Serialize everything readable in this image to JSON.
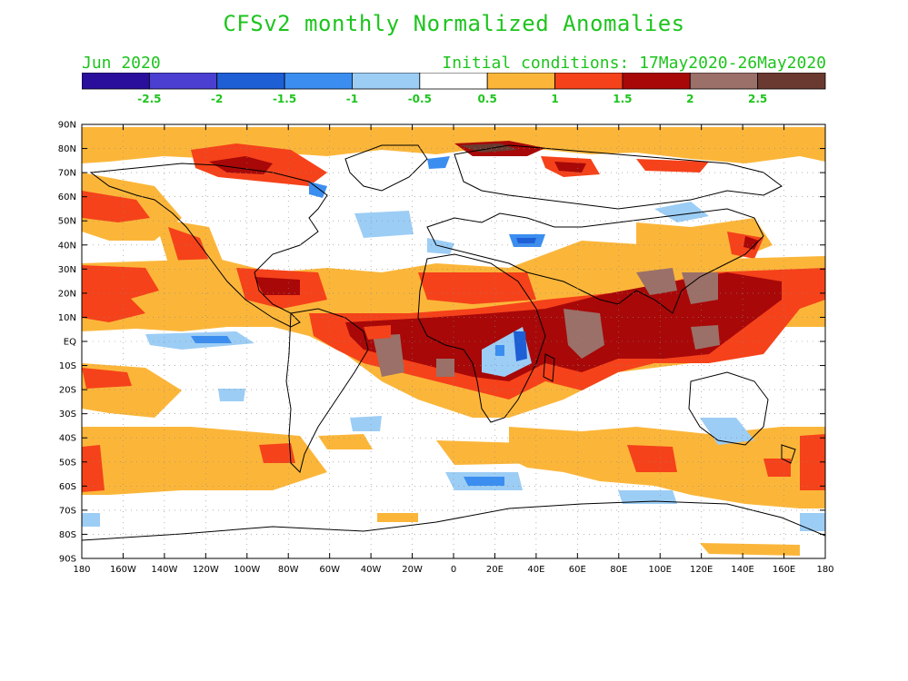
{
  "title": "CFSv2 monthly Normalized Anomalies",
  "month": "Jun 2020",
  "initial_conditions": "Initial conditions: 17May2020-26May2020",
  "legend": {
    "colors": [
      "#2a0f9c",
      "#4a3fd0",
      "#1e5fd6",
      "#3b8ef0",
      "#9ccdf5",
      "#ffffff",
      "#fbb63a",
      "#f5421a",
      "#a80808",
      "#9a7068",
      "#6a3a30"
    ],
    "labels": [
      "-2.5",
      "-2",
      "-1.5",
      "-1",
      "-0.5",
      "0.5",
      "1",
      "1.5",
      "2",
      "2.5"
    ]
  },
  "lat_labels": [
    "90N",
    "80N",
    "70N",
    "60N",
    "50N",
    "40N",
    "30N",
    "20N",
    "10N",
    "EQ",
    "10S",
    "20S",
    "30S",
    "40S",
    "50S",
    "60S",
    "70S",
    "80S",
    "90S"
  ],
  "lon_labels": [
    "180",
    "160W",
    "140W",
    "120W",
    "100W",
    "80W",
    "60W",
    "40W",
    "20W",
    "0",
    "20E",
    "40E",
    "60E",
    "80E",
    "100E",
    "120E",
    "140E",
    "160E",
    "180"
  ]
}
